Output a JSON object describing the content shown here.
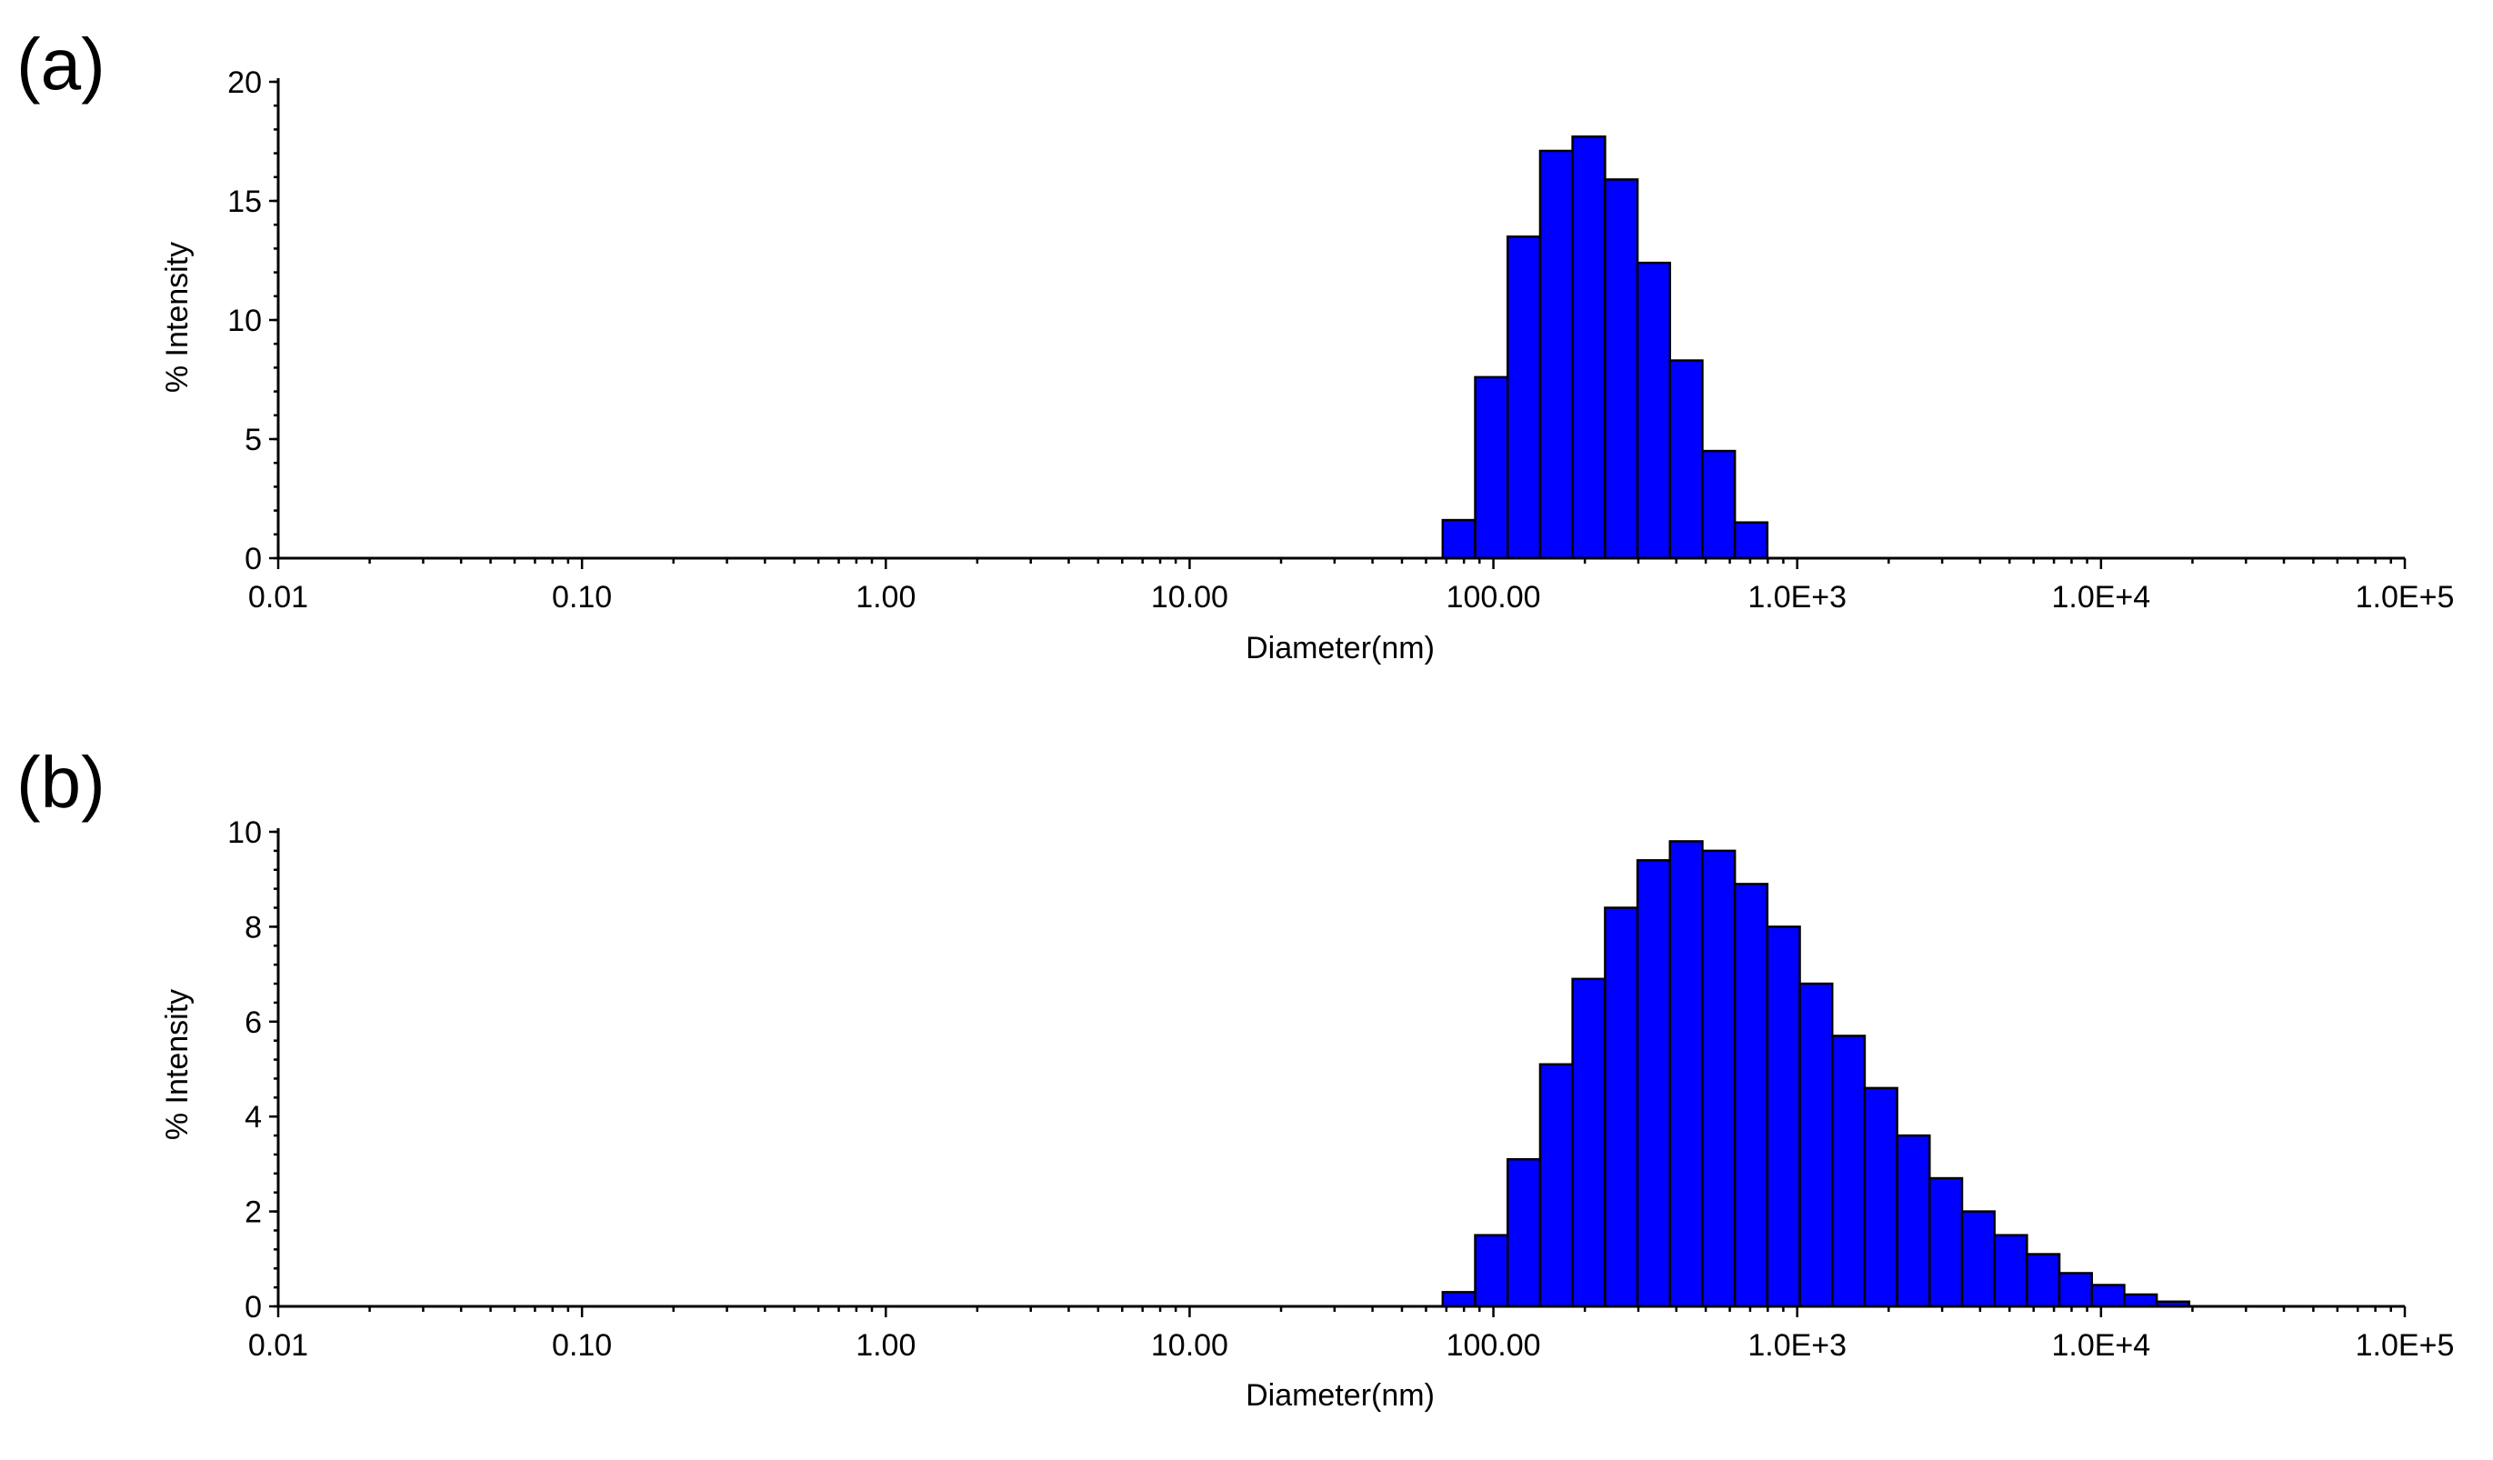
{
  "chart_data": [
    {
      "panel_label": "(a)",
      "type": "bar",
      "xlabel": "Diameter(nm)",
      "ylabel": "% Intensity",
      "x_scale": "log",
      "xlim": [
        0.01,
        100000
      ],
      "x_tick_labels": [
        "0.01",
        "0.10",
        "1.00",
        "10.00",
        "100.00",
        "1.0E+3",
        "1.0E+4",
        "1.0E+5"
      ],
      "ylim": [
        0,
        20
      ],
      "y_ticks": [
        0,
        5,
        10,
        15,
        20
      ],
      "grid": false,
      "bar_color": "#0000ff",
      "bars": [
        {
          "x_from": 68.1,
          "x_to": 87.1,
          "value": 1.6
        },
        {
          "x_from": 87.1,
          "x_to": 111.4,
          "value": 7.6
        },
        {
          "x_from": 111.4,
          "x_to": 142.5,
          "value": 13.5
        },
        {
          "x_from": 142.5,
          "x_to": 182.2,
          "value": 17.1
        },
        {
          "x_from": 182.2,
          "x_to": 233.1,
          "value": 17.7
        },
        {
          "x_from": 233.1,
          "x_to": 298.1,
          "value": 15.9
        },
        {
          "x_from": 298.1,
          "x_to": 381.2,
          "value": 12.4
        },
        {
          "x_from": 381.2,
          "x_to": 487.5,
          "value": 8.3
        },
        {
          "x_from": 487.5,
          "x_to": 623.5,
          "value": 4.5
        },
        {
          "x_from": 623.5,
          "x_to": 797.4,
          "value": 1.5
        }
      ]
    },
    {
      "panel_label": "(b)",
      "type": "bar",
      "xlabel": "Diameter(nm)",
      "ylabel": "% Intensity",
      "x_scale": "log",
      "xlim": [
        0.01,
        100000
      ],
      "x_tick_labels": [
        "0.01",
        "0.10",
        "1.00",
        "10.00",
        "100.00",
        "1.0E+3",
        "1.0E+4",
        "1.0E+5"
      ],
      "ylim": [
        0,
        10
      ],
      "y_ticks": [
        0,
        2,
        4,
        6,
        8,
        10
      ],
      "grid": false,
      "bar_color": "#0000ff",
      "bars": [
        {
          "x_from": 68.1,
          "x_to": 87.1,
          "value": 0.3
        },
        {
          "x_from": 87.1,
          "x_to": 111.4,
          "value": 1.5
        },
        {
          "x_from": 111.4,
          "x_to": 142.5,
          "value": 3.1
        },
        {
          "x_from": 142.5,
          "x_to": 182.2,
          "value": 5.1
        },
        {
          "x_from": 182.2,
          "x_to": 233.1,
          "value": 6.9
        },
        {
          "x_from": 233.1,
          "x_to": 298.1,
          "value": 8.4
        },
        {
          "x_from": 298.1,
          "x_to": 381.2,
          "value": 9.4
        },
        {
          "x_from": 381.2,
          "x_to": 487.5,
          "value": 9.8
        },
        {
          "x_from": 487.5,
          "x_to": 623.5,
          "value": 9.6
        },
        {
          "x_from": 623.5,
          "x_to": 797.4,
          "value": 8.9
        },
        {
          "x_from": 797.4,
          "x_to": 1019.8,
          "value": 8.0
        },
        {
          "x_from": 1019.8,
          "x_to": 1304.1,
          "value": 6.8
        },
        {
          "x_from": 1304.1,
          "x_to": 1667.7,
          "value": 5.7
        },
        {
          "x_from": 1667.7,
          "x_to": 2132.6,
          "value": 4.6
        },
        {
          "x_from": 2132.6,
          "x_to": 2727.3,
          "value": 3.6
        },
        {
          "x_from": 2727.3,
          "x_to": 3487.6,
          "value": 2.7
        },
        {
          "x_from": 3487.6,
          "x_to": 4460.2,
          "value": 2.0
        },
        {
          "x_from": 4460.2,
          "x_to": 5703.8,
          "value": 1.5
        },
        {
          "x_from": 5703.8,
          "x_to": 7294.1,
          "value": 1.1
        },
        {
          "x_from": 7294.1,
          "x_to": 9327.8,
          "value": 0.7
        },
        {
          "x_from": 9327.8,
          "x_to": 11928.6,
          "value": 0.45
        },
        {
          "x_from": 11928.6,
          "x_to": 15254.5,
          "value": 0.25
        },
        {
          "x_from": 15254.5,
          "x_to": 19507.8,
          "value": 0.1
        }
      ]
    }
  ]
}
